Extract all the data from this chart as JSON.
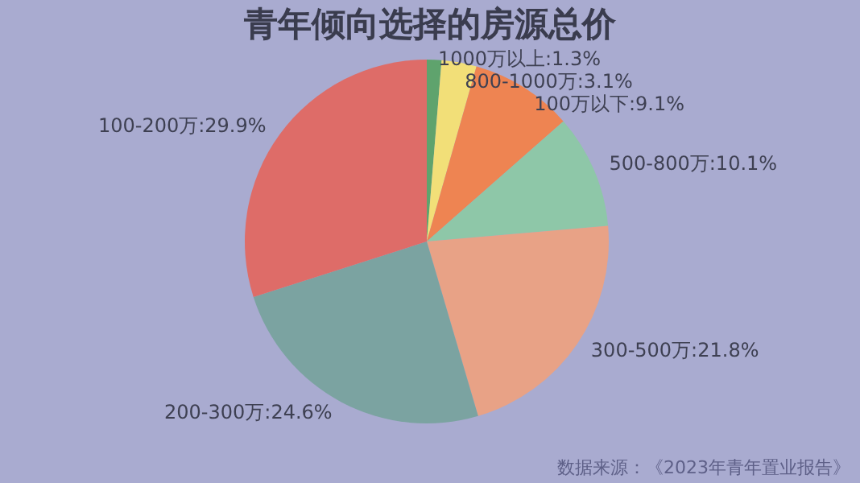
{
  "chart_data": {
    "type": "pie",
    "title": "青年倾向选择的房源总价",
    "categories": [
      "1000万以上",
      "800-1000万",
      "100万以下",
      "500-800万",
      "300-500万",
      "200-300万",
      "100-200万"
    ],
    "values": [
      1.3,
      3.1,
      9.1,
      10.1,
      21.8,
      24.6,
      29.9
    ],
    "value_labels": [
      "1.3%",
      "3.1%",
      "9.1%",
      "10.1%",
      "21.8%",
      "24.6%",
      "29.9%"
    ],
    "colors": [
      "#5fa36d",
      "#f2df78",
      "#ee8452",
      "#8ec7a8",
      "#e8a286",
      "#7ba3a1",
      "#de6c68"
    ],
    "annotations": [
      "数据来源：《2023年青年置业报告》"
    ]
  }
}
